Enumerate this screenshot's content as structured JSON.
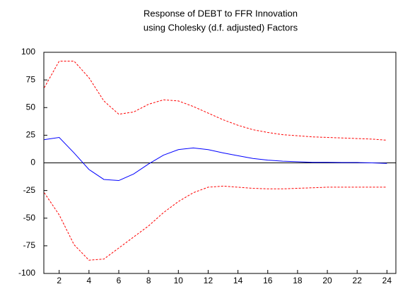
{
  "chart_data": {
    "type": "line",
    "title": "Response of DEBT to FFR Innovation",
    "subtitle": "using Cholesky (d.f. adjusted) Factors",
    "x": [
      1,
      2,
      3,
      4,
      5,
      6,
      7,
      8,
      9,
      10,
      11,
      12,
      13,
      14,
      15,
      16,
      17,
      18,
      19,
      20,
      21,
      22,
      23,
      24
    ],
    "series": [
      {
        "color": "#0000ff",
        "dash": false,
        "values": [
          21,
          23,
          9,
          -6,
          -15,
          -16,
          -10,
          -1,
          7,
          12,
          13.5,
          12,
          9,
          6.5,
          4,
          2.5,
          1.5,
          1,
          0.5,
          0.5,
          0.3,
          0.3,
          0,
          -0.5
        ]
      },
      {
        "color": "#ff0000",
        "dash": true,
        "values": [
          68,
          92,
          92,
          77,
          56,
          44,
          46,
          53,
          57,
          56,
          51,
          45,
          39,
          34,
          30,
          27.5,
          25.5,
          24.5,
          23.5,
          23,
          22.5,
          22,
          21.5,
          20.5
        ]
      },
      {
        "color": "#ff0000",
        "dash": true,
        "values": [
          -27,
          -47,
          -74,
          -88,
          -87,
          -77,
          -67,
          -57,
          -45,
          -35,
          -27,
          -22,
          -21,
          -22,
          -23,
          -23.5,
          -23.5,
          -23,
          -22.5,
          -22,
          -22,
          -22,
          -22,
          -22
        ]
      }
    ],
    "xlim": [
      0.97,
      24.6
    ],
    "xticks": [
      2,
      4,
      6,
      8,
      10,
      12,
      14,
      16,
      18,
      20,
      22,
      24
    ],
    "ylim": [
      -100,
      100
    ],
    "yticks": [
      100,
      75,
      50,
      25,
      0,
      -25,
      -50,
      -75,
      -100
    ],
    "zero_line": true
  }
}
